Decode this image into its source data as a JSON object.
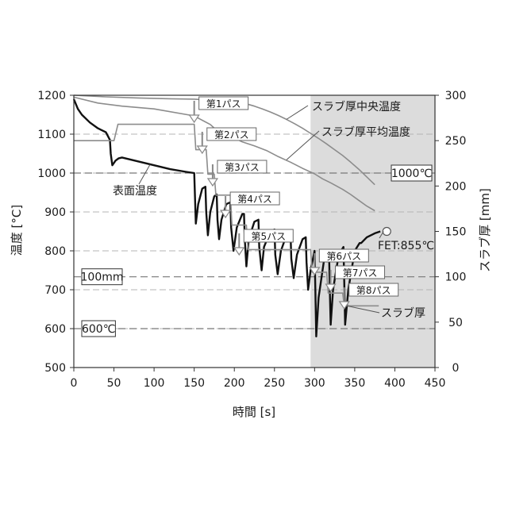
{
  "chart_data": {
    "type": "line",
    "xlabel": "時間 [s]",
    "ylabel": "温度 [°C]",
    "y2label": "スラブ厚 [mm]",
    "xlim": [
      0,
      450
    ],
    "ylim": [
      500,
      1200
    ],
    "y2lim": [
      0,
      300
    ],
    "xticks": [
      "0",
      "50",
      "100",
      "150",
      "200",
      "250",
      "300",
      "350",
      "400",
      "450"
    ],
    "yticks": [
      "500",
      "600",
      "700",
      "800",
      "900",
      "1000",
      "1100",
      "1200"
    ],
    "y2ticks": [
      "0",
      "50",
      "100",
      "150",
      "200",
      "250",
      "300"
    ],
    "grid": "horizontal",
    "shaded_region": {
      "x_from": 295,
      "x_to": 450
    },
    "reference_lines": [
      {
        "label": "1000℃",
        "axis": "temperature",
        "value": 1000
      },
      {
        "label": "600℃",
        "axis": "temperature",
        "value": 600
      },
      {
        "label": "100mm",
        "axis": "thickness",
        "value": 100
      }
    ],
    "series": [
      {
        "name": "スラブ厚中央温度",
        "axis": "temperature",
        "color": "#8c8c8c",
        "points": [
          [
            0,
            1200
          ],
          [
            40,
            1196
          ],
          [
            80,
            1193
          ],
          [
            120,
            1191
          ],
          [
            150,
            1190
          ],
          [
            175,
            1187
          ],
          [
            200,
            1182
          ],
          [
            215,
            1178
          ],
          [
            225,
            1172
          ],
          [
            235,
            1165
          ],
          [
            245,
            1157
          ],
          [
            255,
            1148
          ],
          [
            265,
            1138
          ],
          [
            275,
            1127
          ],
          [
            285,
            1115
          ],
          [
            295,
            1102
          ],
          [
            305,
            1089
          ],
          [
            315,
            1075
          ],
          [
            325,
            1060
          ],
          [
            335,
            1045
          ],
          [
            345,
            1028
          ],
          [
            355,
            1010
          ],
          [
            365,
            990
          ],
          [
            375,
            970
          ]
        ]
      },
      {
        "name": "スラブ厚平均温度",
        "axis": "temperature",
        "color": "#8c8c8c",
        "points": [
          [
            0,
            1195
          ],
          [
            30,
            1180
          ],
          [
            60,
            1172
          ],
          [
            100,
            1165
          ],
          [
            150,
            1147
          ],
          [
            158,
            1138
          ],
          [
            170,
            1125
          ],
          [
            178,
            1110
          ],
          [
            190,
            1100
          ],
          [
            200,
            1090
          ],
          [
            210,
            1080
          ],
          [
            225,
            1070
          ],
          [
            240,
            1058
          ],
          [
            255,
            1042
          ],
          [
            270,
            1028
          ],
          [
            285,
            1012
          ],
          [
            300,
            998
          ],
          [
            310,
            985
          ],
          [
            320,
            975
          ],
          [
            335,
            958
          ],
          [
            345,
            945
          ],
          [
            355,
            930
          ],
          [
            365,
            915
          ],
          [
            375,
            903
          ]
        ]
      },
      {
        "name": "表面温度",
        "axis": "temperature",
        "color": "#111111",
        "points": [
          [
            0,
            1190
          ],
          [
            5,
            1165
          ],
          [
            10,
            1150
          ],
          [
            20,
            1130
          ],
          [
            30,
            1115
          ],
          [
            40,
            1105
          ],
          [
            45,
            1085
          ],
          [
            46,
            1050
          ],
          [
            48,
            1020
          ],
          [
            52,
            1032
          ],
          [
            56,
            1038
          ],
          [
            60,
            1040
          ],
          [
            80,
            1030
          ],
          [
            100,
            1020
          ],
          [
            120,
            1010
          ],
          [
            140,
            1003
          ],
          [
            150,
            1000
          ],
          [
            151,
            935
          ],
          [
            152,
            870
          ],
          [
            155,
            920
          ],
          [
            160,
            960
          ],
          [
            164,
            965
          ],
          [
            165,
            900
          ],
          [
            167,
            840
          ],
          [
            170,
            900
          ],
          [
            175,
            940
          ],
          [
            178,
            945
          ],
          [
            179,
            880
          ],
          [
            181,
            830
          ],
          [
            184,
            880
          ],
          [
            190,
            920
          ],
          [
            195,
            925
          ],
          [
            196,
            860
          ],
          [
            199,
            800
          ],
          [
            203,
            860
          ],
          [
            210,
            895
          ],
          [
            212,
            895
          ],
          [
            213,
            830
          ],
          [
            215,
            760
          ],
          [
            218,
            830
          ],
          [
            225,
            875
          ],
          [
            230,
            880
          ],
          [
            231,
            810
          ],
          [
            234,
            750
          ],
          [
            237,
            810
          ],
          [
            245,
            850
          ],
          [
            250,
            855
          ],
          [
            251,
            790
          ],
          [
            254,
            740
          ],
          [
            258,
            800
          ],
          [
            265,
            840
          ],
          [
            270,
            845
          ],
          [
            271,
            780
          ],
          [
            274,
            730
          ],
          [
            278,
            790
          ],
          [
            285,
            830
          ],
          [
            289,
            835
          ],
          [
            290,
            770
          ],
          [
            292,
            700
          ],
          [
            295,
            750
          ],
          [
            300,
            800
          ],
          [
            301,
            700
          ],
          [
            302,
            580
          ],
          [
            305,
            680
          ],
          [
            312,
            780
          ],
          [
            318,
            800
          ],
          [
            319,
            700
          ],
          [
            320,
            610
          ],
          [
            323,
            700
          ],
          [
            330,
            790
          ],
          [
            336,
            810
          ],
          [
            337,
            720
          ],
          [
            338,
            610
          ],
          [
            342,
            700
          ],
          [
            350,
            800
          ],
          [
            356,
            820
          ],
          [
            358,
            820
          ],
          [
            365,
            835
          ],
          [
            375,
            845
          ],
          [
            382,
            850
          ]
        ]
      },
      {
        "name": "スラブ厚",
        "axis": "thickness",
        "color": "#8c8c8c",
        "points": [
          [
            0,
            250
          ],
          [
            50,
            250
          ],
          [
            55,
            268
          ],
          [
            150,
            268
          ],
          [
            152,
            240
          ],
          [
            165,
            240
          ],
          [
            167,
            213
          ],
          [
            175,
            213
          ],
          [
            177,
            190
          ],
          [
            195,
            190
          ],
          [
            197,
            157
          ],
          [
            215,
            157
          ],
          [
            217,
            130
          ],
          [
            295,
            130
          ],
          [
            297,
            105
          ],
          [
            315,
            105
          ],
          [
            317,
            82
          ],
          [
            335,
            82
          ],
          [
            337,
            68
          ],
          [
            380,
            68
          ]
        ]
      }
    ],
    "annotations": [
      {
        "text": "スラブ厚中央温度",
        "series": "スラブ厚中央温度",
        "leader_to": [
          265,
          1138
        ]
      },
      {
        "text": "スラブ厚平均温度",
        "series": "スラブ厚平均温度",
        "leader_to": [
          265,
          1034
        ]
      },
      {
        "text": "表面温度",
        "series": "表面温度",
        "leader_to": [
          95,
          1022
        ]
      },
      {
        "text": "スラブ厚",
        "series": "スラブ厚",
        "leader_to": [
          340,
          68
        ]
      },
      {
        "text": "FET:855℃",
        "series": "表面温度",
        "leader_to": [
          378,
          850
        ]
      }
    ],
    "passes": [
      {
        "label": "第1パス",
        "x": 150
      },
      {
        "label": "第2パス",
        "x": 160
      },
      {
        "label": "第3パス",
        "x": 173
      },
      {
        "label": "第4パス",
        "x": 189
      },
      {
        "label": "第5パス",
        "x": 206
      },
      {
        "label": "第6パス",
        "x": 298
      },
      {
        "label": "第7パス",
        "x": 318
      },
      {
        "label": "第8パス",
        "x": 335
      }
    ]
  }
}
